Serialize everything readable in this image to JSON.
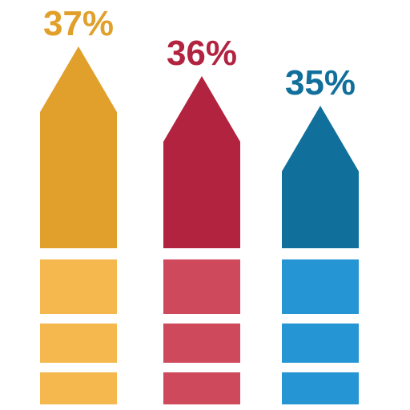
{
  "chart_data": {
    "type": "bar",
    "title": "",
    "xlabel": "",
    "ylabel": "",
    "ylim": [
      0,
      45
    ],
    "categories": [
      "",
      "",
      ""
    ],
    "series": [
      {
        "values": [
          37,
          36,
          35
        ]
      }
    ],
    "data_labels": [
      "37%",
      "36%",
      "35%"
    ],
    "colors": {
      "arrow": [
        "#E0A02B",
        "#B22340",
        "#10709B"
      ],
      "blocks": [
        "#F4B84E",
        "#CE495C",
        "#2595D3"
      ]
    }
  }
}
